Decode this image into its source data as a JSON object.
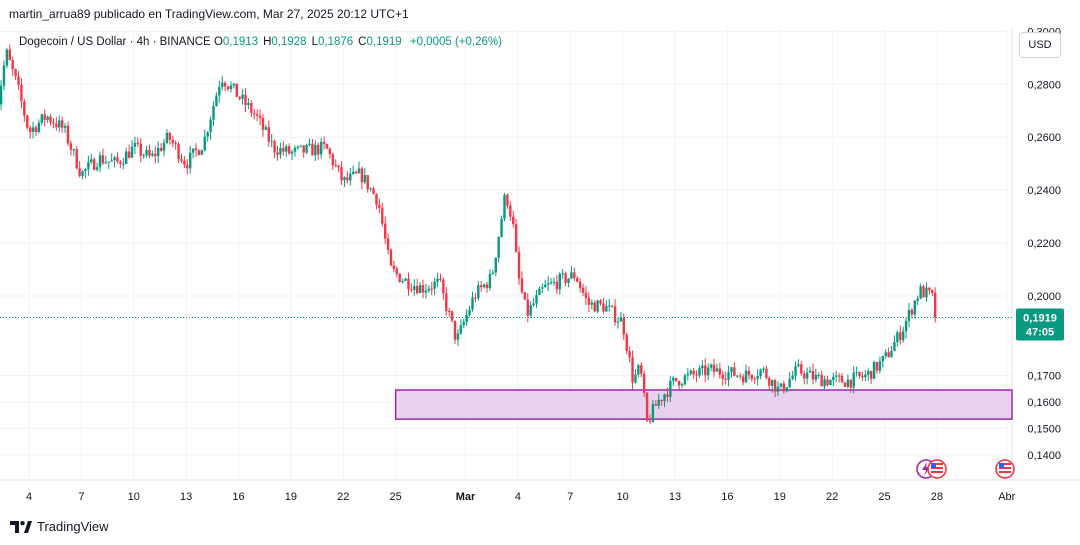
{
  "header": {
    "published": "martin_arrua89 publicado en TradingView.com, Mar 27, 2025 20:12 UTC+1",
    "symbol": "Dogecoin / US Dollar · 4h · BINANCE",
    "ohlc": [
      {
        "k": "O",
        "v": "0,1913"
      },
      {
        "k": "H",
        "v": "0,1928"
      },
      {
        "k": "L",
        "v": "0,1876"
      },
      {
        "k": "C",
        "v": "0,1919"
      }
    ],
    "change": "+0,0005 (+0,26%)",
    "currency": "USD"
  },
  "footer": {
    "brand": "TradingView"
  },
  "colors": {
    "up": "#089981",
    "down": "#f23645",
    "zone_fill": "#e8d2ef",
    "zone_stroke": "#9c27b0",
    "price_label": "#089981",
    "grid": "#f0f3fa"
  },
  "chart_data": {
    "type": "candlestick",
    "y_ticks": [
      "0,1400",
      "0,1500",
      "0,1600",
      "0,1700",
      "0,2000",
      "0,2200",
      "0,2400",
      "0,2600",
      "0,2800",
      "0,3000"
    ],
    "y_tick_values": [
      0.14,
      0.15,
      0.16,
      0.17,
      0.2,
      0.22,
      0.24,
      0.26,
      0.28,
      0.3
    ],
    "ylim": [
      0.1305,
      0.3005
    ],
    "x_ticks": [
      "4",
      "7",
      "10",
      "13",
      "16",
      "19",
      "22",
      "25",
      "Mar",
      "4",
      "7",
      "10",
      "13",
      "16",
      "19",
      "22",
      "25",
      "28",
      "Abr"
    ],
    "x_tick_days": [
      4,
      7,
      10,
      13,
      16,
      19,
      22,
      25,
      29,
      32,
      35,
      38,
      41,
      44,
      47,
      50,
      53,
      56,
      60
    ],
    "x_day_origin": "Feb 1, 2025",
    "last_price": "0,1919",
    "last_price_value": 0.1919,
    "countdown": "47:05",
    "zone": {
      "from_day": 25,
      "to_day": 60.5,
      "low": 0.1535,
      "high": 0.1645
    },
    "keypoints": [
      [
        1.9,
        0.24
      ],
      [
        2.0,
        0.265
      ],
      [
        2.7,
        0.292
      ],
      [
        3.3,
        0.28
      ],
      [
        4.0,
        0.262
      ],
      [
        5.0,
        0.268
      ],
      [
        6.0,
        0.263
      ],
      [
        7.0,
        0.246
      ],
      [
        8.0,
        0.252
      ],
      [
        9.0,
        0.25
      ],
      [
        10.0,
        0.256
      ],
      [
        11.0,
        0.252
      ],
      [
        12.0,
        0.26
      ],
      [
        13.0,
        0.25
      ],
      [
        14.0,
        0.258
      ],
      [
        15.0,
        0.283
      ],
      [
        16.2,
        0.274
      ],
      [
        17.0,
        0.268
      ],
      [
        18.0,
        0.256
      ],
      [
        19.0,
        0.254
      ],
      [
        20.0,
        0.255
      ],
      [
        21.0,
        0.256
      ],
      [
        22.0,
        0.243
      ],
      [
        23.0,
        0.246
      ],
      [
        24.0,
        0.236
      ],
      [
        24.7,
        0.21
      ],
      [
        25.5,
        0.206
      ],
      [
        26.5,
        0.203
      ],
      [
        27.5,
        0.205
      ],
      [
        28.5,
        0.183
      ],
      [
        29.5,
        0.2
      ],
      [
        30.5,
        0.207
      ],
      [
        31.3,
        0.239
      ],
      [
        31.7,
        0.228
      ],
      [
        32.0,
        0.208
      ],
      [
        32.5,
        0.193
      ],
      [
        33.5,
        0.203
      ],
      [
        34.5,
        0.206
      ],
      [
        35.3,
        0.208
      ],
      [
        36.0,
        0.197
      ],
      [
        37.0,
        0.196
      ],
      [
        38.0,
        0.19
      ],
      [
        38.6,
        0.168
      ],
      [
        39.0,
        0.173
      ],
      [
        39.4,
        0.152
      ],
      [
        40.0,
        0.16
      ],
      [
        41.0,
        0.168
      ],
      [
        42.0,
        0.17
      ],
      [
        43.0,
        0.172
      ],
      [
        44.0,
        0.171
      ],
      [
        45.0,
        0.17
      ],
      [
        46.0,
        0.172
      ],
      [
        47.0,
        0.164
      ],
      [
        48.0,
        0.172
      ],
      [
        49.0,
        0.169
      ],
      [
        50.0,
        0.168
      ],
      [
        51.0,
        0.168
      ],
      [
        52.0,
        0.17
      ],
      [
        53.0,
        0.176
      ],
      [
        54.0,
        0.187
      ],
      [
        55.0,
        0.202
      ],
      [
        55.7,
        0.2
      ],
      [
        56.0,
        0.192
      ]
    ]
  }
}
